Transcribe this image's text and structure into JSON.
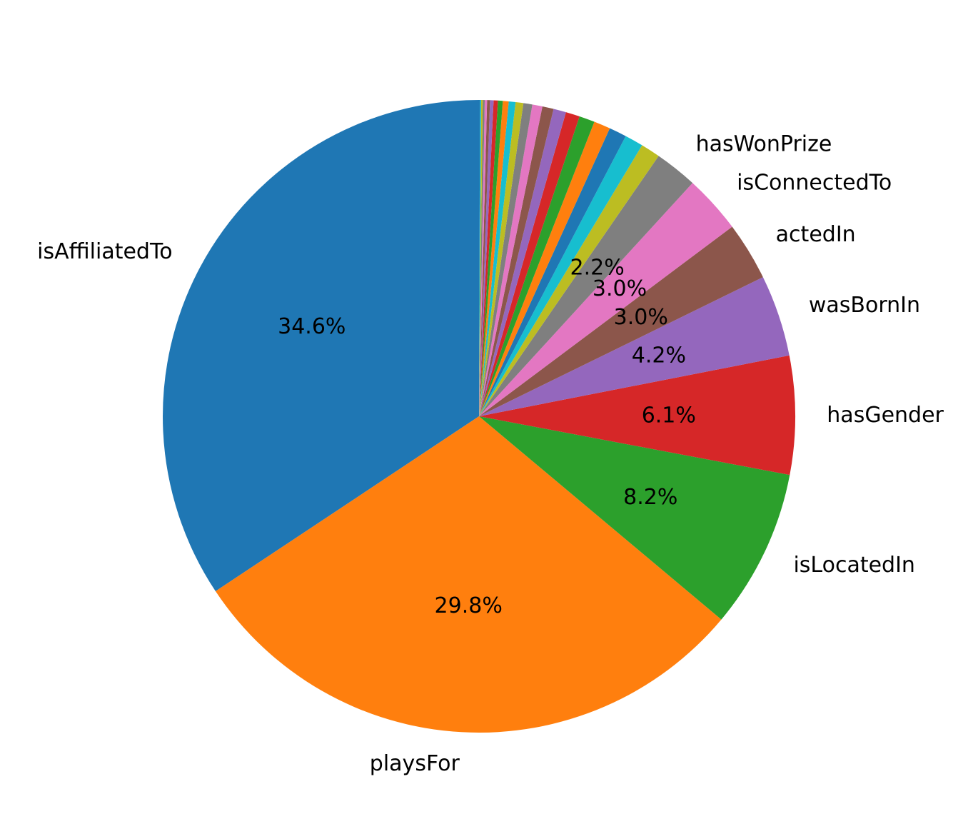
{
  "chart_data": {
    "type": "pie",
    "start_angle_deg": 90,
    "direction": "counterclockwise",
    "slices": [
      {
        "label": "isAffiliatedTo",
        "value": 34.6,
        "pct_label": "34.6%",
        "color": "#1f77b4"
      },
      {
        "label": "playsFor",
        "value": 29.8,
        "pct_label": "29.8%",
        "color": "#ff7f0e"
      },
      {
        "label": "isLocatedIn",
        "value": 8.2,
        "pct_label": "8.2%",
        "color": "#2ca02c"
      },
      {
        "label": "hasGender",
        "value": 6.1,
        "pct_label": "6.1%",
        "color": "#d62728"
      },
      {
        "label": "wasBornIn",
        "value": 4.2,
        "pct_label": "4.2%",
        "color": "#9467bd"
      },
      {
        "label": "actedIn",
        "value": 3.0,
        "pct_label": "3.0%",
        "color": "#8c564b"
      },
      {
        "label": "isConnectedTo",
        "value": 3.0,
        "pct_label": "3.0%",
        "color": "#e377c2"
      },
      {
        "label": "hasWonPrize",
        "value": 2.2,
        "pct_label": "2.2%",
        "color": "#7f7f7f"
      },
      {
        "label": "",
        "value": 1.0,
        "pct_label": "",
        "color": "#bcbd22"
      },
      {
        "label": "",
        "value": 0.95,
        "pct_label": "",
        "color": "#17becf"
      },
      {
        "label": "",
        "value": 0.9,
        "pct_label": "",
        "color": "#1f77b4"
      },
      {
        "label": "",
        "value": 0.85,
        "pct_label": "",
        "color": "#ff7f0e"
      },
      {
        "label": "",
        "value": 0.8,
        "pct_label": "",
        "color": "#2ca02c"
      },
      {
        "label": "",
        "value": 0.72,
        "pct_label": "",
        "color": "#d62728"
      },
      {
        "label": "",
        "value": 0.65,
        "pct_label": "",
        "color": "#9467bd"
      },
      {
        "label": "",
        "value": 0.58,
        "pct_label": "",
        "color": "#8c564b"
      },
      {
        "label": "",
        "value": 0.52,
        "pct_label": "",
        "color": "#e377c2"
      },
      {
        "label": "",
        "value": 0.46,
        "pct_label": "",
        "color": "#7f7f7f"
      },
      {
        "label": "",
        "value": 0.4,
        "pct_label": "",
        "color": "#bcbd22"
      },
      {
        "label": "",
        "value": 0.35,
        "pct_label": "",
        "color": "#17becf"
      },
      {
        "label": "",
        "value": 0.3,
        "pct_label": "",
        "color": "#ff7f0e"
      },
      {
        "label": "",
        "value": 0.25,
        "pct_label": "",
        "color": "#2ca02c"
      },
      {
        "label": "",
        "value": 0.22,
        "pct_label": "",
        "color": "#d62728"
      },
      {
        "label": "",
        "value": 0.18,
        "pct_label": "",
        "color": "#9467bd"
      },
      {
        "label": "",
        "value": 0.15,
        "pct_label": "",
        "color": "#8c564b"
      },
      {
        "label": "",
        "value": 0.12,
        "pct_label": "",
        "color": "#e377c2"
      },
      {
        "label": "",
        "value": 0.1,
        "pct_label": "",
        "color": "#7f7f7f"
      },
      {
        "label": "",
        "value": 0.08,
        "pct_label": "",
        "color": "#bcbd22"
      },
      {
        "label": "",
        "value": 0.06,
        "pct_label": "",
        "color": "#17becf"
      },
      {
        "label": "",
        "value": 0.05,
        "pct_label": "",
        "color": "#1f77b4"
      }
    ]
  }
}
